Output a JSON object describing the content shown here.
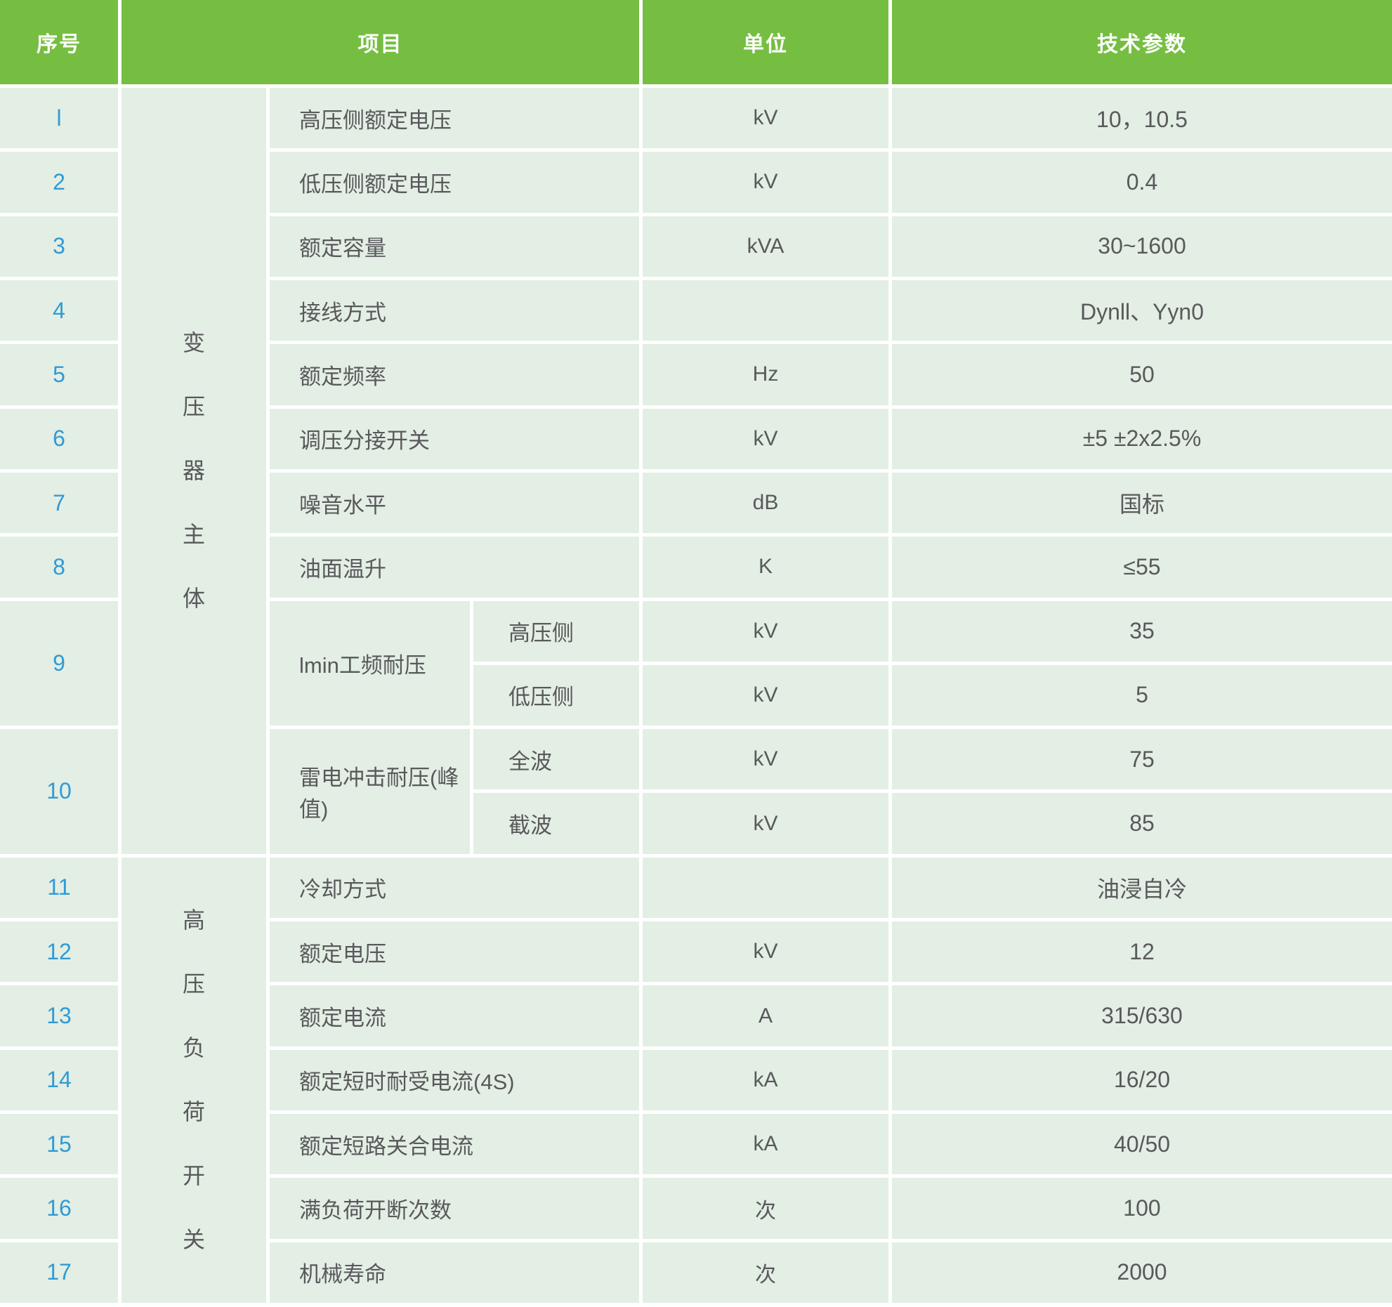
{
  "table": {
    "headers": {
      "no": "序号",
      "item": "项目",
      "unit": "单位",
      "param": "技术参数"
    },
    "categories": [
      {
        "label": "变压器主体"
      },
      {
        "label": "高压负荷开关"
      }
    ],
    "rows": [
      {
        "no": "l",
        "item": "高压侧额定电压",
        "unit": "kV",
        "value": "10，10.5"
      },
      {
        "no": "2",
        "item": "低压侧额定电压",
        "unit": "kV",
        "value": "0.4"
      },
      {
        "no": "3",
        "item": "额定容量",
        "unit": "kVA",
        "value": "30~1600"
      },
      {
        "no": "4",
        "item": "接线方式",
        "unit": "",
        "value": "Dynll、Yyn0"
      },
      {
        "no": "5",
        "item": "额定频率",
        "unit": "Hz",
        "value": "50"
      },
      {
        "no": "6",
        "item": "调压分接开关",
        "unit": "kV",
        "value": "±5 ±2x2.5%"
      },
      {
        "no": "7",
        "item": "噪音水平",
        "unit": "dB",
        "value": "国标"
      },
      {
        "no": "8",
        "item": "油面温升",
        "unit": "K",
        "value": "≤55"
      },
      {
        "no": "9",
        "item": "lmin工频耐压",
        "subs": [
          {
            "sub": "高压侧",
            "unit": "kV",
            "value": "35"
          },
          {
            "sub": "低压侧",
            "unit": "kV",
            "value": "5"
          }
        ]
      },
      {
        "no": "10",
        "item": "雷电冲击耐压(峰值)",
        "subs": [
          {
            "sub": "全波",
            "unit": "kV",
            "value": "75"
          },
          {
            "sub": "截波",
            "unit": "kV",
            "value": "85"
          }
        ]
      },
      {
        "no": "11",
        "item": "冷却方式",
        "unit": "",
        "value": "油浸自冷"
      },
      {
        "no": "12",
        "item": "额定电压",
        "unit": "kV",
        "value": "12"
      },
      {
        "no": "13",
        "item": "额定电流",
        "unit": "A",
        "value": "315/630"
      },
      {
        "no": "14",
        "item": "额定短时耐受电流(4S)",
        "unit": "kA",
        "value": "16/20"
      },
      {
        "no": "15",
        "item": "额定短路关合电流",
        "unit": "kA",
        "value": "40/50"
      },
      {
        "no": "16",
        "item": "满负荷开断次数",
        "unit": "次",
        "value": "100"
      },
      {
        "no": "17",
        "item": "机械寿命",
        "unit": "次",
        "value": "2000"
      }
    ]
  },
  "colors": {
    "header_green": "#76be42",
    "cell_green": "#e3eee4",
    "serial_blue": "#2f9bd5",
    "text_gray": "#58595b",
    "grid_white": "#ffffff",
    "header_text": "#ffffff"
  }
}
